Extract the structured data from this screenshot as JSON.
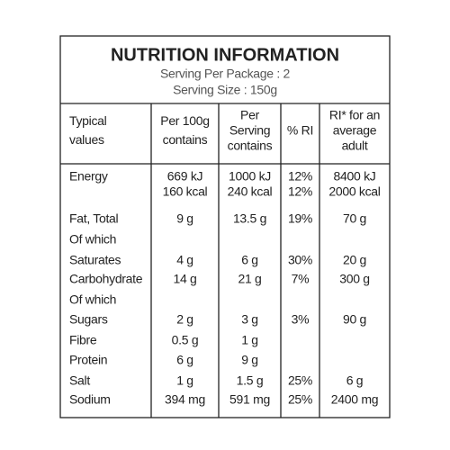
{
  "header": {
    "title": "NUTRITION INFORMATION",
    "serving_per_package": "Serving Per Package : 2",
    "serving_size": "Serving Size : 150g"
  },
  "table": {
    "columns": [
      [
        "Typical",
        "values"
      ],
      [
        "Per 100g",
        "contains"
      ],
      [
        "Per",
        "Serving",
        "contains"
      ],
      [
        "% RI"
      ],
      [
        "RI* for an",
        "average",
        "adult"
      ]
    ],
    "rows": [
      [
        [
          "Energy"
        ],
        [
          "669 kJ",
          "160 kcal"
        ],
        [
          "1000 kJ",
          "240 kcal"
        ],
        [
          "12%",
          "12%"
        ],
        [
          "8400 kJ",
          "2000 kcal"
        ]
      ],
      [
        [
          "Fat, Total"
        ],
        [
          "9 g"
        ],
        [
          "13.5 g"
        ],
        [
          "19%"
        ],
        [
          "70 g"
        ]
      ],
      [
        [
          "Of which"
        ]
      ],
      [
        [
          "Saturates"
        ],
        [
          "4 g"
        ],
        [
          "6 g"
        ],
        [
          "30%"
        ],
        [
          "20 g"
        ]
      ],
      [
        [
          "Carbohydrate"
        ],
        [
          "14 g"
        ],
        [
          "21 g"
        ],
        [
          "7%"
        ],
        [
          "300 g"
        ]
      ],
      [
        [
          "Of which"
        ]
      ],
      [
        [
          "Sugars"
        ],
        [
          "2 g"
        ],
        [
          "3 g"
        ],
        [
          "3%"
        ],
        [
          "90 g"
        ]
      ],
      [
        [
          "Fibre"
        ],
        [
          "0.5 g"
        ],
        [
          "1 g"
        ]
      ],
      [
        [
          "Protein"
        ],
        [
          "6 g"
        ],
        [
          "9 g"
        ]
      ],
      [
        [
          "Salt"
        ],
        [
          "1 g"
        ],
        [
          "1.5 g"
        ],
        [
          "25%"
        ],
        [
          "6 g"
        ]
      ],
      [
        [
          "Sodium"
        ],
        [
          "394 mg"
        ],
        [
          "591 mg"
        ],
        [
          "25%"
        ],
        [
          "2400 mg"
        ]
      ]
    ]
  }
}
